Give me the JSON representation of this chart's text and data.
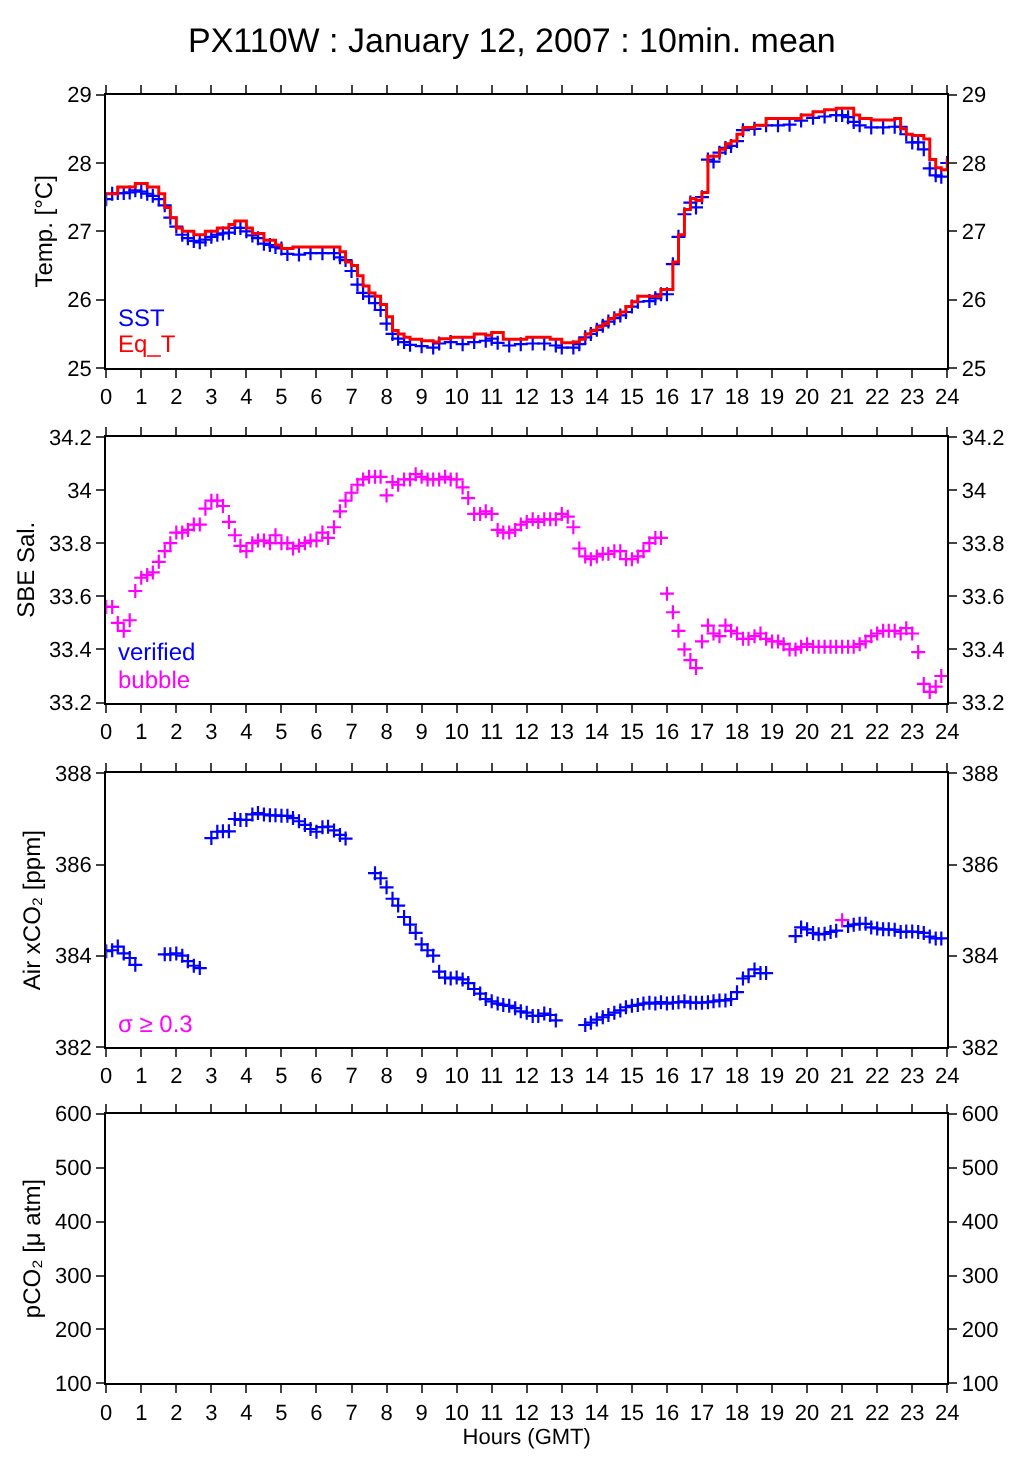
{
  "chart_data": [
    {
      "type": "scatter",
      "title": "PX110W : January 12, 2007 : 10min. mean",
      "ylabel": "Temp. [°C]",
      "xlim": [
        0,
        24
      ],
      "xticks": [
        0,
        1,
        2,
        3,
        4,
        5,
        6,
        7,
        8,
        9,
        10,
        11,
        12,
        13,
        14,
        15,
        16,
        17,
        18,
        19,
        20,
        21,
        22,
        23,
        24
      ],
      "ylim": [
        25,
        29
      ],
      "yticks": [
        25,
        26,
        27,
        28,
        29
      ],
      "y2lim": [
        25,
        29
      ],
      "y2ticks": [
        25,
        26,
        27,
        28,
        29
      ],
      "legend": "bottom left",
      "marker": "cross",
      "grid": false,
      "series": [
        {
          "name": "Eq_T",
          "color": "#ff0000",
          "type": "step",
          "marker": "none",
          "x": [
            0,
            0.33,
            0.83,
            1.17,
            1.5,
            1.67,
            1.83,
            2.0,
            2.17,
            2.5,
            2.83,
            3.17,
            3.5,
            3.67,
            3.83,
            4.0,
            4.17,
            4.5,
            4.83,
            5.0,
            5.33,
            6.0,
            6.67,
            6.83,
            7.0,
            7.17,
            7.33,
            7.5,
            7.67,
            7.83,
            8.0,
            8.17,
            8.33,
            8.5,
            8.67,
            9.0,
            9.33,
            9.5,
            9.83,
            10.17,
            10.5,
            10.83,
            11.0,
            11.33,
            11.67,
            12.0,
            12.33,
            12.67,
            13.0,
            13.33,
            13.5,
            13.67,
            13.83,
            14.0,
            14.17,
            14.33,
            14.5,
            14.67,
            14.83,
            15.0,
            15.17,
            15.5,
            15.83,
            16.17,
            16.33,
            16.5,
            16.67,
            16.83,
            17.0,
            17.17,
            17.5,
            17.67,
            17.83,
            18.0,
            18.17,
            18.5,
            18.83,
            19.5,
            19.83,
            20.17,
            20.5,
            20.83,
            21.33,
            21.5,
            21.83,
            22.5,
            22.67,
            22.83,
            23.0,
            23.33,
            23.5,
            23.67,
            23.83,
            24.0
          ],
          "values": [
            27.55,
            27.65,
            27.7,
            27.65,
            27.55,
            27.35,
            27.2,
            27.05,
            27.0,
            26.95,
            27.0,
            27.05,
            27.1,
            27.15,
            27.15,
            27.05,
            26.97,
            26.87,
            26.8,
            26.75,
            26.77,
            26.77,
            26.7,
            26.55,
            26.5,
            26.35,
            26.2,
            26.1,
            26.05,
            25.93,
            25.75,
            25.55,
            25.5,
            25.45,
            25.42,
            25.4,
            25.38,
            25.43,
            25.45,
            25.45,
            25.5,
            25.48,
            25.52,
            25.42,
            25.42,
            25.45,
            25.45,
            25.42,
            25.37,
            25.38,
            25.42,
            25.5,
            25.55,
            25.6,
            25.65,
            25.72,
            25.78,
            25.82,
            25.9,
            25.97,
            26.05,
            26.05,
            26.15,
            26.55,
            26.95,
            27.32,
            27.48,
            27.45,
            27.57,
            28.1,
            28.2,
            28.28,
            28.32,
            28.42,
            28.52,
            28.55,
            28.65,
            28.65,
            28.7,
            28.75,
            28.78,
            28.8,
            28.7,
            28.65,
            28.63,
            28.65,
            28.5,
            28.42,
            28.4,
            28.35,
            28.05,
            27.93,
            27.9,
            28.07
          ]
        },
        {
          "name": "SST",
          "color": "#0000ff",
          "x": [
            0,
            0.17,
            0.33,
            0.5,
            0.67,
            0.83,
            1.0,
            1.17,
            1.33,
            1.5,
            1.67,
            1.83,
            2.0,
            2.17,
            2.33,
            2.5,
            2.67,
            2.83,
            3.0,
            3.17,
            3.33,
            3.5,
            3.67,
            3.83,
            4.0,
            4.17,
            4.33,
            4.5,
            4.67,
            4.83,
            5.0,
            5.17,
            5.5,
            5.83,
            6.17,
            6.5,
            6.67,
            6.83,
            7.0,
            7.17,
            7.33,
            7.5,
            7.67,
            7.83,
            8.0,
            8.17,
            8.33,
            8.5,
            8.67,
            9.0,
            9.33,
            9.5,
            9.83,
            10.17,
            10.5,
            10.83,
            11.0,
            11.17,
            11.5,
            11.83,
            12.17,
            12.5,
            12.83,
            13.0,
            13.33,
            13.5,
            13.67,
            13.83,
            14.0,
            14.17,
            14.33,
            14.5,
            14.67,
            14.83,
            15.0,
            15.17,
            15.5,
            15.67,
            15.83,
            16.0,
            16.17,
            16.33,
            16.5,
            16.67,
            16.83,
            17.0,
            17.17,
            17.33,
            17.5,
            17.67,
            17.83,
            18.0,
            18.17,
            18.5,
            18.83,
            19.17,
            19.5,
            19.83,
            20.17,
            20.5,
            20.83,
            21.0,
            21.17,
            21.33,
            21.5,
            21.83,
            22.17,
            22.5,
            22.67,
            22.83,
            23.0,
            23.17,
            23.33,
            23.5,
            23.67,
            23.83,
            24.0
          ],
          "values": [
            27.47,
            27.55,
            27.56,
            27.56,
            27.57,
            27.6,
            27.58,
            27.55,
            27.52,
            27.47,
            27.38,
            27.2,
            27.07,
            26.95,
            26.9,
            26.86,
            26.84,
            26.88,
            26.92,
            26.95,
            26.97,
            26.98,
            27.05,
            27.05,
            27.0,
            26.94,
            26.9,
            26.82,
            26.8,
            26.77,
            26.75,
            26.67,
            26.66,
            26.68,
            26.68,
            26.68,
            26.62,
            26.58,
            26.42,
            26.22,
            26.1,
            26.05,
            25.95,
            25.85,
            25.65,
            25.5,
            25.43,
            25.38,
            25.34,
            25.32,
            25.3,
            25.36,
            25.38,
            25.35,
            25.38,
            25.4,
            25.43,
            25.37,
            25.33,
            25.35,
            25.36,
            25.36,
            25.33,
            25.3,
            25.3,
            25.35,
            25.45,
            25.5,
            25.56,
            25.62,
            25.68,
            25.73,
            25.77,
            25.82,
            25.9,
            25.97,
            25.98,
            26.02,
            26.08,
            26.08,
            26.52,
            26.92,
            27.25,
            27.42,
            27.35,
            27.5,
            28.05,
            28.02,
            28.15,
            28.22,
            28.25,
            28.32,
            28.48,
            28.5,
            28.55,
            28.55,
            28.56,
            28.62,
            28.66,
            28.68,
            28.7,
            28.7,
            28.67,
            28.6,
            28.55,
            28.52,
            28.52,
            28.53,
            28.53,
            28.42,
            28.3,
            28.3,
            28.2,
            27.92,
            27.82,
            27.8,
            28.0
          ]
        }
      ]
    },
    {
      "type": "scatter",
      "ylabel": "SBE Sal.",
      "xlim": [
        0,
        24
      ],
      "xticks": [
        0,
        1,
        2,
        3,
        4,
        5,
        6,
        7,
        8,
        9,
        10,
        11,
        12,
        13,
        14,
        15,
        16,
        17,
        18,
        19,
        20,
        21,
        22,
        23,
        24
      ],
      "ylim": [
        33.2,
        34.2
      ],
      "yticks": [
        33.2,
        33.4,
        33.6,
        33.8,
        34,
        34.2
      ],
      "y2lim": [
        33.2,
        34.2
      ],
      "y2ticks": [
        33.2,
        33.4,
        33.6,
        33.8,
        34,
        34.2
      ],
      "legend": "bottom left",
      "marker": "cross",
      "grid": false,
      "series": [
        {
          "name": "verified",
          "color": "#0000ff"
        },
        {
          "name": "bubble",
          "color": "#ff00ff",
          "x": [
            0.0,
            0.17,
            0.33,
            0.5,
            0.67,
            0.83,
            1.0,
            1.17,
            1.33,
            1.5,
            1.67,
            1.83,
            2.0,
            2.17,
            2.33,
            2.5,
            2.67,
            2.83,
            3.0,
            3.17,
            3.33,
            3.5,
            3.67,
            3.83,
            4.0,
            4.17,
            4.33,
            4.5,
            4.67,
            4.83,
            5.0,
            5.17,
            5.33,
            5.5,
            5.67,
            5.83,
            6.0,
            6.17,
            6.33,
            6.5,
            6.67,
            6.83,
            7.0,
            7.17,
            7.33,
            7.5,
            7.67,
            7.83,
            8.0,
            8.17,
            8.33,
            8.5,
            8.67,
            8.83,
            9.0,
            9.17,
            9.33,
            9.5,
            9.67,
            9.83,
            10.0,
            10.17,
            10.33,
            10.5,
            10.67,
            10.83,
            11.0,
            11.17,
            11.33,
            11.5,
            11.67,
            11.83,
            12.0,
            12.17,
            12.33,
            12.5,
            12.67,
            12.83,
            13.0,
            13.17,
            13.33,
            13.5,
            13.67,
            13.83,
            14.0,
            14.17,
            14.33,
            14.5,
            14.67,
            14.83,
            15.0,
            15.17,
            15.33,
            15.5,
            15.67,
            15.83,
            16.0,
            16.17,
            16.33,
            16.5,
            16.67,
            16.83,
            17.0,
            17.17,
            17.33,
            17.5,
            17.67,
            17.83,
            18.0,
            18.17,
            18.33,
            18.5,
            18.67,
            18.83,
            19.0,
            19.17,
            19.33,
            19.5,
            19.67,
            19.83,
            20.0,
            20.17,
            20.33,
            20.5,
            20.67,
            20.83,
            21.0,
            21.17,
            21.33,
            21.5,
            21.67,
            21.83,
            22.0,
            22.17,
            22.33,
            22.5,
            22.67,
            22.83,
            23.0,
            23.17,
            23.33,
            23.5,
            23.67,
            23.83
          ],
          "values": [
            33.56,
            33.56,
            33.5,
            33.47,
            33.51,
            33.62,
            33.67,
            33.68,
            33.69,
            33.73,
            33.77,
            33.8,
            33.84,
            33.84,
            33.85,
            33.87,
            33.87,
            33.93,
            33.96,
            33.96,
            33.94,
            33.88,
            33.83,
            33.79,
            33.77,
            33.8,
            33.81,
            33.81,
            33.8,
            33.83,
            33.8,
            33.8,
            33.78,
            33.79,
            33.8,
            33.81,
            33.81,
            33.84,
            33.82,
            33.86,
            33.92,
            33.96,
            33.99,
            34.02,
            34.04,
            34.05,
            34.05,
            34.05,
            33.98,
            34.03,
            34.02,
            34.04,
            34.04,
            34.06,
            34.05,
            34.04,
            34.04,
            34.04,
            34.05,
            34.04,
            34.04,
            34.01,
            33.97,
            33.91,
            33.91,
            33.92,
            33.91,
            33.85,
            33.84,
            33.84,
            33.85,
            33.87,
            33.88,
            33.89,
            33.88,
            33.89,
            33.89,
            33.89,
            33.91,
            33.9,
            33.86,
            33.78,
            33.75,
            33.74,
            33.75,
            33.76,
            33.76,
            33.77,
            33.77,
            33.74,
            33.74,
            33.75,
            33.77,
            33.8,
            33.82,
            33.82,
            33.61,
            33.54,
            33.47,
            33.4,
            33.36,
            33.33,
            33.43,
            33.49,
            33.46,
            33.45,
            33.49,
            33.47,
            33.46,
            33.44,
            33.44,
            33.45,
            33.46,
            33.44,
            33.43,
            33.43,
            33.42,
            33.4,
            33.4,
            33.41,
            33.42,
            33.41,
            33.41,
            33.41,
            33.41,
            33.41,
            33.41,
            33.41,
            33.41,
            33.42,
            33.43,
            33.45,
            33.46,
            33.47,
            33.47,
            33.47,
            33.46,
            33.48,
            33.46,
            33.39,
            33.27,
            33.24,
            33.26,
            33.3
          ]
        }
      ]
    },
    {
      "type": "scatter",
      "ylabel": "Air xCO₂ [ppm]",
      "xlim": [
        0,
        24
      ],
      "xticks": [
        0,
        1,
        2,
        3,
        4,
        5,
        6,
        7,
        8,
        9,
        10,
        11,
        12,
        13,
        14,
        15,
        16,
        17,
        18,
        19,
        20,
        21,
        22,
        23,
        24
      ],
      "ylim": [
        382,
        388
      ],
      "yticks": [
        382,
        384,
        386,
        388
      ],
      "y2lim": [
        382,
        388
      ],
      "y2ticks": [
        382,
        384,
        386,
        388
      ],
      "legend": "bottom left",
      "marker": "cross",
      "grid": false,
      "series": [
        {
          "color": "#0000ff",
          "x": [
            0,
            0.17,
            0.33,
            0.5,
            0.67,
            0.83,
            1.67,
            1.83,
            2.0,
            2.17,
            2.33,
            2.5,
            2.67,
            3.0,
            3.17,
            3.33,
            3.5,
            3.67,
            3.83,
            4.0,
            4.17,
            4.33,
            4.5,
            4.67,
            4.83,
            5.0,
            5.17,
            5.33,
            5.5,
            5.67,
            5.83,
            6.0,
            6.17,
            6.33,
            6.5,
            6.67,
            6.83,
            7.67,
            7.83,
            8.0,
            8.17,
            8.33,
            8.5,
            8.67,
            8.83,
            9.0,
            9.17,
            9.33,
            9.5,
            9.67,
            9.83,
            10.0,
            10.17,
            10.33,
            10.5,
            10.67,
            10.83,
            11.0,
            11.17,
            11.33,
            11.5,
            11.67,
            11.83,
            12.0,
            12.17,
            12.33,
            12.5,
            12.67,
            12.83,
            13.67,
            13.83,
            14.0,
            14.17,
            14.33,
            14.5,
            14.67,
            14.83,
            15.0,
            15.17,
            15.33,
            15.5,
            15.67,
            15.83,
            16.0,
            16.17,
            16.33,
            16.5,
            16.67,
            16.83,
            17.0,
            17.17,
            17.33,
            17.5,
            17.67,
            17.83,
            18.0,
            18.17,
            18.33,
            18.5,
            18.67,
            18.83,
            19.67,
            19.83,
            20.0,
            20.17,
            20.33,
            20.5,
            20.67,
            20.83,
            21.17,
            21.33,
            21.5,
            21.67,
            21.83,
            22.0,
            22.17,
            22.33,
            22.5,
            22.67,
            22.83,
            23.0,
            23.17,
            23.33,
            23.5,
            23.67,
            23.83
          ],
          "values": [
            384.1,
            384.12,
            384.2,
            384.05,
            383.95,
            383.8,
            384.03,
            384.03,
            384.05,
            384.0,
            383.88,
            383.78,
            383.73,
            386.58,
            386.72,
            386.73,
            386.73,
            387.0,
            386.98,
            386.98,
            387.1,
            387.13,
            387.1,
            387.08,
            387.08,
            387.07,
            387.07,
            387.02,
            386.95,
            386.87,
            386.78,
            386.72,
            386.82,
            386.83,
            386.75,
            386.65,
            386.57,
            385.81,
            385.7,
            385.5,
            385.25,
            385.1,
            384.85,
            384.68,
            384.5,
            384.25,
            384.12,
            384.0,
            383.65,
            383.52,
            383.5,
            383.52,
            383.48,
            383.4,
            383.27,
            383.17,
            383.05,
            383.0,
            382.95,
            382.92,
            382.9,
            382.85,
            382.78,
            382.75,
            382.68,
            382.68,
            382.73,
            382.7,
            382.58,
            382.48,
            382.53,
            382.6,
            382.65,
            382.7,
            382.75,
            382.8,
            382.87,
            382.9,
            382.92,
            382.95,
            382.97,
            382.95,
            382.98,
            382.95,
            382.97,
            382.98,
            383.0,
            382.97,
            382.97,
            382.97,
            382.98,
            383.0,
            383.02,
            383.02,
            383.05,
            383.2,
            383.5,
            383.55,
            383.7,
            383.62,
            383.62,
            384.43,
            384.62,
            384.58,
            384.5,
            384.47,
            384.48,
            384.52,
            384.55,
            384.65,
            384.68,
            384.7,
            384.7,
            384.62,
            384.6,
            384.58,
            384.58,
            384.57,
            384.52,
            384.53,
            384.53,
            384.52,
            384.5,
            384.42,
            384.38,
            384.38
          ]
        },
        {
          "name": "σ ≥ 0.3",
          "color": "#ff00ff",
          "x": [
            21.0
          ],
          "values": [
            384.78
          ]
        }
      ]
    },
    {
      "type": "scatter",
      "ylabel": "pCO₂ [μ atm]",
      "xlabel": "Hours (GMT)",
      "xlim": [
        0,
        24
      ],
      "xticks": [
        0,
        1,
        2,
        3,
        4,
        5,
        6,
        7,
        8,
        9,
        10,
        11,
        12,
        13,
        14,
        15,
        16,
        17,
        18,
        19,
        20,
        21,
        22,
        23,
        24
      ],
      "ylim": [
        100,
        600
      ],
      "yticks": [
        100,
        200,
        300,
        400,
        500,
        600
      ],
      "y2lim": [
        100,
        600
      ],
      "y2ticks": [
        100,
        200,
        300,
        400,
        500,
        600
      ],
      "grid": false
    }
  ]
}
